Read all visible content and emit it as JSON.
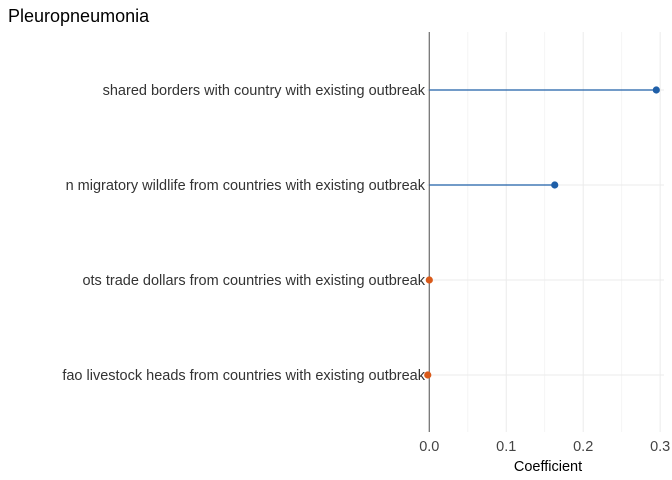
{
  "chart_data": {
    "type": "lollipop",
    "title": "Pleuropneumonia",
    "xlabel": "Coefficient",
    "ylabel": "",
    "x_ticks": [
      "0.0",
      "0.1",
      "0.2",
      "0.3"
    ],
    "x_tick_values": [
      0.0,
      0.1,
      0.2,
      0.3
    ],
    "xlim": [
      -0.003,
      0.305
    ],
    "grid": true,
    "legend": "none",
    "categories": [
      "shared borders with country with existing outbreak",
      "n migratory wildlife from countries with existing outbreak",
      "ots trade dollars from countries with existing outbreak",
      "fao livestock heads from countries with existing outbreak"
    ],
    "values": [
      0.295,
      0.163,
      0.0,
      -0.002
    ],
    "colors": [
      "#1f5fa8",
      "#1f5fa8",
      "#d95a1a",
      "#d95a1a"
    ],
    "zero_line_color": "#777777",
    "grid_color": "#ebebeb"
  }
}
